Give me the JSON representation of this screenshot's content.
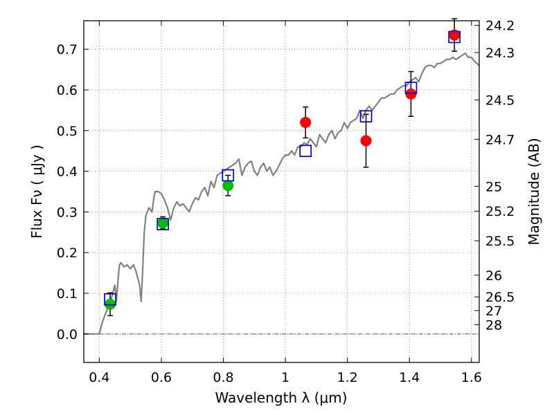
{
  "chart_data": {
    "type": "scatter",
    "title": "",
    "xlabel": "Wavelength  λ (μm)",
    "ylabel": "Flux  Fν  ( μJy )",
    "y2label": "Magnitude (AB)",
    "xlim": [
      0.35,
      1.625
    ],
    "ylim": [
      -0.07,
      0.77
    ],
    "grid": true,
    "xticks": [
      0.4,
      0.6,
      0.8,
      1.0,
      1.2,
      1.4,
      1.6
    ],
    "xtick_labels": [
      "0.4",
      "0.6",
      "0.8",
      "1",
      "1.2",
      "1.4",
      "1.6"
    ],
    "yticks": [
      0.0,
      0.1,
      0.2,
      0.3,
      0.4,
      0.5,
      0.6,
      0.7
    ],
    "ytick_labels": [
      "0.0",
      "0.1",
      "0.2",
      "0.3",
      "0.4",
      "0.5",
      "0.6",
      "0.7"
    ],
    "mag_ticks": [
      "24.2",
      "24.3",
      "24.5",
      "24.7",
      "25",
      "25.2",
      "25.5",
      "26",
      "26.5",
      "27",
      "28"
    ],
    "colors": {
      "model": "#808080",
      "green_points": "#00bb00",
      "red_points": "#ff0000",
      "model_boxes": "#0000cc",
      "errorbars": "#000000"
    },
    "series": [
      {
        "kind": "line",
        "x": [
          0.35,
          0.4,
          0.41,
          0.43,
          0.44,
          0.45,
          0.455,
          0.46,
          0.465,
          0.47,
          0.48,
          0.49,
          0.5,
          0.51,
          0.52,
          0.53,
          0.535,
          0.54,
          0.545,
          0.55,
          0.56,
          0.57,
          0.575,
          0.58,
          0.59,
          0.6,
          0.61,
          0.62,
          0.63,
          0.64,
          0.65,
          0.66,
          0.67,
          0.68,
          0.69,
          0.7,
          0.71,
          0.72,
          0.73,
          0.74,
          0.75,
          0.76,
          0.77,
          0.78,
          0.79,
          0.8,
          0.81,
          0.82,
          0.83,
          0.84,
          0.85,
          0.86,
          0.87,
          0.88,
          0.89,
          0.9,
          0.91,
          0.92,
          0.93,
          0.94,
          0.95,
          0.96,
          0.97,
          0.98,
          0.99,
          1.0,
          1.01,
          1.02,
          1.03,
          1.04,
          1.05,
          1.06,
          1.07,
          1.08,
          1.09,
          1.1,
          1.11,
          1.12,
          1.13,
          1.14,
          1.15,
          1.16,
          1.17,
          1.18,
          1.19,
          1.2,
          1.21,
          1.22,
          1.23,
          1.24,
          1.25,
          1.26,
          1.27,
          1.28,
          1.29,
          1.3,
          1.31,
          1.32,
          1.33,
          1.34,
          1.35,
          1.36,
          1.37,
          1.38,
          1.39,
          1.4,
          1.41,
          1.42,
          1.43,
          1.44,
          1.45,
          1.46,
          1.47,
          1.48,
          1.49,
          1.5,
          1.51,
          1.52,
          1.53,
          1.54,
          1.55,
          1.56,
          1.57,
          1.58,
          1.59,
          1.6,
          1.61,
          1.625
        ],
        "values": [
          0.0,
          0.0,
          0.03,
          0.07,
          0.09,
          0.12,
          0.08,
          0.13,
          0.17,
          0.175,
          0.165,
          0.17,
          0.16,
          0.17,
          0.15,
          0.12,
          0.08,
          0.16,
          0.25,
          0.29,
          0.31,
          0.3,
          0.33,
          0.35,
          0.35,
          0.345,
          0.33,
          0.31,
          0.28,
          0.31,
          0.325,
          0.315,
          0.32,
          0.31,
          0.3,
          0.32,
          0.335,
          0.33,
          0.35,
          0.36,
          0.34,
          0.375,
          0.36,
          0.39,
          0.395,
          0.4,
          0.405,
          0.41,
          0.415,
          0.42,
          0.43,
          0.39,
          0.41,
          0.42,
          0.425,
          0.4,
          0.39,
          0.41,
          0.42,
          0.4,
          0.41,
          0.39,
          0.4,
          0.415,
          0.43,
          0.44,
          0.44,
          0.45,
          0.44,
          0.46,
          0.46,
          0.47,
          0.465,
          0.48,
          0.47,
          0.46,
          0.49,
          0.48,
          0.47,
          0.49,
          0.5,
          0.48,
          0.495,
          0.5,
          0.52,
          0.505,
          0.52,
          0.525,
          0.53,
          0.55,
          0.53,
          0.55,
          0.56,
          0.55,
          0.56,
          0.57,
          0.58,
          0.58,
          0.585,
          0.59,
          0.59,
          0.6,
          0.605,
          0.61,
          0.61,
          0.62,
          0.625,
          0.63,
          0.62,
          0.64,
          0.655,
          0.66,
          0.66,
          0.655,
          0.665,
          0.665,
          0.67,
          0.675,
          0.675,
          0.68,
          0.675,
          0.68,
          0.685,
          0.69,
          0.68,
          0.68,
          0.67,
          0.66
        ]
      },
      {
        "kind": "scatter",
        "marker": "circle",
        "color": "green",
        "x": [
          0.435,
          0.605,
          0.815
        ],
        "values": [
          0.073,
          0.273,
          0.365
        ],
        "err": [
          0.028,
          0.015,
          0.025
        ]
      },
      {
        "kind": "scatter",
        "marker": "circle",
        "color": "red",
        "x": [
          1.065,
          1.26,
          1.405,
          1.545
        ],
        "values": [
          0.52,
          0.475,
          0.59,
          0.735
        ],
        "err": [
          0.038,
          0.065,
          0.055,
          0.04
        ]
      },
      {
        "kind": "scatter",
        "marker": "open-square",
        "color": "blue",
        "x": [
          0.435,
          0.605,
          0.815,
          1.065,
          1.26,
          1.405,
          1.545
        ],
        "values": [
          0.085,
          0.27,
          0.39,
          0.45,
          0.535,
          0.605,
          0.73
        ]
      }
    ]
  }
}
